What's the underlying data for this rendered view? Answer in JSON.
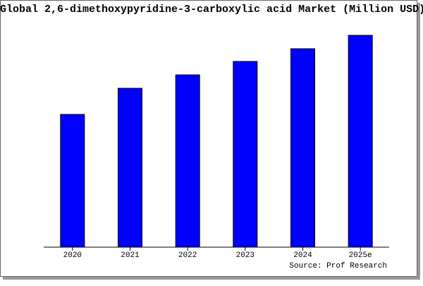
{
  "chart_data": {
    "type": "bar",
    "title": "Global 2,6-dimethoxypyridine-3-carboxylic acid Market (Million USD)",
    "source": "Source: Prof Research",
    "categories": [
      "2020",
      "2021",
      "2022",
      "2023",
      "2024",
      "2025e"
    ],
    "values": [
      188,
      225,
      244,
      263,
      281,
      300
    ],
    "color": "#0000ff",
    "ylim": [
      0,
      300
    ]
  }
}
